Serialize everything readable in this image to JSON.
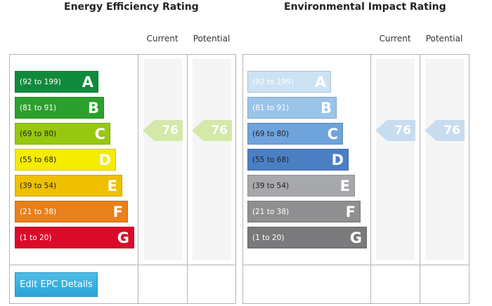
{
  "energy": {
    "title": "Energy Efficiency Rating",
    "current_label": "Current",
    "potential_label": "Potential",
    "bands": [
      {
        "range": "(92 to 199)",
        "letter": "A",
        "color": "#0f8a3c",
        "text_color": "#ffffff"
      },
      {
        "range": "(81 to 91)",
        "letter": "B",
        "color": "#2ca02c",
        "text_color": "#ffffff"
      },
      {
        "range": "(69 to 80)",
        "letter": "C",
        "color": "#97c80f",
        "text_color": "#222222"
      },
      {
        "range": "(55 to 68)",
        "letter": "D",
        "color": "#f6ec00",
        "text_color": "#222222"
      },
      {
        "range": "(39 to 54)",
        "letter": "E",
        "color": "#efc000",
        "text_color": "#222222"
      },
      {
        "range": "(21 to 38)",
        "letter": "F",
        "color": "#e8801c",
        "text_color": "#ffffff"
      },
      {
        "range": "(1 to 20)",
        "letter": "G",
        "color": "#dc0a2a",
        "text_color": "#ffffff"
      }
    ],
    "current_value": "76",
    "potential_value": "76",
    "arrow_color": "#d4e8a8"
  },
  "environmental": {
    "title": "Environmental Impact Rating",
    "current_label": "Current",
    "potential_label": "Potential",
    "bands": [
      {
        "range": "(92 to 199)",
        "letter": "A",
        "color": "#cde3f4",
        "text_color": "#ffffff"
      },
      {
        "range": "(81 to 91)",
        "letter": "B",
        "color": "#9ac4e8",
        "text_color": "#ffffff"
      },
      {
        "range": "(69 to 80)",
        "letter": "C",
        "color": "#6fa3dc",
        "text_color": "#222222"
      },
      {
        "range": "(55 to 68)",
        "letter": "D",
        "color": "#4b7fc4",
        "text_color": "#222222"
      },
      {
        "range": "(39 to 54)",
        "letter": "E",
        "color": "#a7a8ab",
        "text_color": "#222222"
      },
      {
        "range": "(21 to 38)",
        "letter": "F",
        "color": "#8f8f92",
        "text_color": "#ffffff"
      },
      {
        "range": "(1 to 20)",
        "letter": "G",
        "color": "#7a7a7d",
        "text_color": "#ffffff"
      }
    ],
    "current_value": "76",
    "potential_value": "76",
    "arrow_color": "#c8dcef"
  },
  "actions": {
    "edit_label": "Edit EPC Details"
  }
}
